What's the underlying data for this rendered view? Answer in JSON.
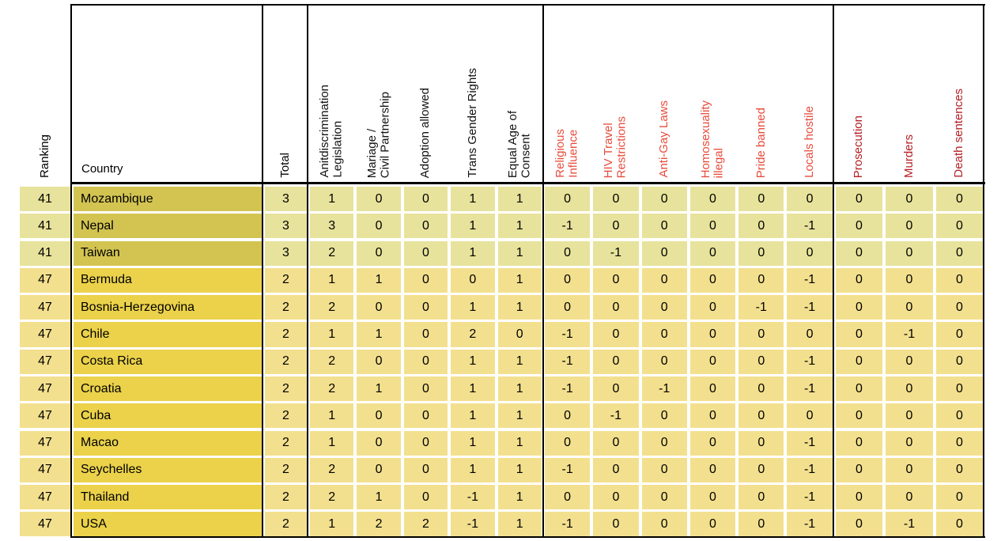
{
  "header": {
    "ranking_label": "Ranking",
    "country_label": "Country",
    "total_label": "Total",
    "score_columns": [
      "Anitdiscrimination\nLegislation",
      "Mariage /\nCivil Partnership",
      "Adoption allowed",
      "Trans Gender Rights",
      "Equal Age of\nConsent"
    ],
    "penalty_columns": [
      "Religious\nInfluence",
      "HIV Travel\nRestrictions",
      "Anti-Gay Laws",
      "Homosexuality\nillegal",
      "Pride banned",
      "Locals hostile"
    ],
    "danger_columns": [
      "Prosecution",
      "Murders",
      "Death sentences"
    ]
  },
  "colors": {
    "score_header_text": "#111111",
    "penalty_header_text": "#e74c3c",
    "danger_header_text": "#b32025",
    "rank41_row_bg": "#e8e39c",
    "rank41_country_bg": "#d3c452",
    "rank47_row_bg": "#f3e08e",
    "rank47_country_bg": "#ebd24a",
    "grid_line": "#000000"
  },
  "rows": [
    {
      "ranking": 41,
      "country": "Mozambique",
      "total": 3,
      "scores": [
        1,
        0,
        0,
        1,
        1
      ],
      "penalties": [
        0,
        0,
        0,
        0,
        0,
        0
      ],
      "danger": [
        0,
        0,
        0
      ]
    },
    {
      "ranking": 41,
      "country": "Nepal",
      "total": 3,
      "scores": [
        3,
        0,
        0,
        1,
        1
      ],
      "penalties": [
        -1,
        0,
        0,
        0,
        0,
        -1
      ],
      "danger": [
        0,
        0,
        0
      ]
    },
    {
      "ranking": 41,
      "country": "Taiwan",
      "total": 3,
      "scores": [
        2,
        0,
        0,
        1,
        1
      ],
      "penalties": [
        0,
        -1,
        0,
        0,
        0,
        0
      ],
      "danger": [
        0,
        0,
        0
      ]
    },
    {
      "ranking": 47,
      "country": "Bermuda",
      "total": 2,
      "scores": [
        1,
        1,
        0,
        0,
        1
      ],
      "penalties": [
        0,
        0,
        0,
        0,
        0,
        -1
      ],
      "danger": [
        0,
        0,
        0
      ]
    },
    {
      "ranking": 47,
      "country": "Bosnia-Herzegovina",
      "total": 2,
      "scores": [
        2,
        0,
        0,
        1,
        1
      ],
      "penalties": [
        0,
        0,
        0,
        0,
        -1,
        -1
      ],
      "danger": [
        0,
        0,
        0
      ]
    },
    {
      "ranking": 47,
      "country": "Chile",
      "total": 2,
      "scores": [
        1,
        1,
        0,
        2,
        0
      ],
      "penalties": [
        -1,
        0,
        0,
        0,
        0,
        0
      ],
      "danger": [
        0,
        -1,
        0
      ]
    },
    {
      "ranking": 47,
      "country": "Costa Rica",
      "total": 2,
      "scores": [
        2,
        0,
        0,
        1,
        1
      ],
      "penalties": [
        -1,
        0,
        0,
        0,
        0,
        -1
      ],
      "danger": [
        0,
        0,
        0
      ]
    },
    {
      "ranking": 47,
      "country": "Croatia",
      "total": 2,
      "scores": [
        2,
        1,
        0,
        1,
        1
      ],
      "penalties": [
        -1,
        0,
        -1,
        0,
        0,
        -1
      ],
      "danger": [
        0,
        0,
        0
      ]
    },
    {
      "ranking": 47,
      "country": "Cuba",
      "total": 2,
      "scores": [
        1,
        0,
        0,
        1,
        1
      ],
      "penalties": [
        0,
        -1,
        0,
        0,
        0,
        0
      ],
      "danger": [
        0,
        0,
        0
      ]
    },
    {
      "ranking": 47,
      "country": "Macao",
      "total": 2,
      "scores": [
        1,
        0,
        0,
        1,
        1
      ],
      "penalties": [
        0,
        0,
        0,
        0,
        0,
        -1
      ],
      "danger": [
        0,
        0,
        0
      ]
    },
    {
      "ranking": 47,
      "country": "Seychelles",
      "total": 2,
      "scores": [
        2,
        0,
        0,
        1,
        1
      ],
      "penalties": [
        -1,
        0,
        0,
        0,
        0,
        -1
      ],
      "danger": [
        0,
        0,
        0
      ]
    },
    {
      "ranking": 47,
      "country": "Thailand",
      "total": 2,
      "scores": [
        2,
        1,
        0,
        -1,
        1
      ],
      "penalties": [
        0,
        0,
        0,
        0,
        0,
        -1
      ],
      "danger": [
        0,
        0,
        0
      ]
    },
    {
      "ranking": 47,
      "country": "USA",
      "total": 2,
      "scores": [
        1,
        2,
        2,
        -1,
        1
      ],
      "penalties": [
        -1,
        0,
        0,
        0,
        0,
        -1
      ],
      "danger": [
        0,
        -1,
        0
      ]
    }
  ],
  "chart_data": {
    "type": "table",
    "title": "",
    "columns": [
      "Ranking",
      "Country",
      "Total",
      "Anitdiscrimination Legislation",
      "Mariage / Civil Partnership",
      "Adoption allowed",
      "Trans Gender Rights",
      "Equal Age of Consent",
      "Religious Influence",
      "HIV Travel Restrictions",
      "Anti-Gay Laws",
      "Homosexuality illegal",
      "Pride banned",
      "Locals hostile",
      "Prosecution",
      "Murders",
      "Death sentences"
    ],
    "rows": [
      [
        41,
        "Mozambique",
        3,
        1,
        0,
        0,
        1,
        1,
        0,
        0,
        0,
        0,
        0,
        0,
        0,
        0,
        0
      ],
      [
        41,
        "Nepal",
        3,
        3,
        0,
        0,
        1,
        1,
        -1,
        0,
        0,
        0,
        0,
        -1,
        0,
        0,
        0
      ],
      [
        41,
        "Taiwan",
        3,
        2,
        0,
        0,
        1,
        1,
        0,
        -1,
        0,
        0,
        0,
        0,
        0,
        0,
        0
      ],
      [
        47,
        "Bermuda",
        2,
        1,
        1,
        0,
        0,
        1,
        0,
        0,
        0,
        0,
        0,
        -1,
        0,
        0,
        0
      ],
      [
        47,
        "Bosnia-Herzegovina",
        2,
        2,
        0,
        0,
        1,
        1,
        0,
        0,
        0,
        0,
        -1,
        -1,
        0,
        0,
        0
      ],
      [
        47,
        "Chile",
        2,
        1,
        1,
        0,
        2,
        0,
        -1,
        0,
        0,
        0,
        0,
        0,
        0,
        -1,
        0
      ],
      [
        47,
        "Costa Rica",
        2,
        2,
        0,
        0,
        1,
        1,
        -1,
        0,
        0,
        0,
        0,
        -1,
        0,
        0,
        0
      ],
      [
        47,
        "Croatia",
        2,
        2,
        1,
        0,
        1,
        1,
        -1,
        0,
        -1,
        0,
        0,
        -1,
        0,
        0,
        0
      ],
      [
        47,
        "Cuba",
        2,
        1,
        0,
        0,
        1,
        1,
        0,
        -1,
        0,
        0,
        0,
        0,
        0,
        0,
        0
      ],
      [
        47,
        "Macao",
        2,
        1,
        0,
        0,
        1,
        1,
        0,
        0,
        0,
        0,
        0,
        -1,
        0,
        0,
        0
      ],
      [
        47,
        "Seychelles",
        2,
        2,
        0,
        0,
        1,
        1,
        -1,
        0,
        0,
        0,
        0,
        -1,
        0,
        0,
        0
      ],
      [
        47,
        "Thailand",
        2,
        2,
        1,
        0,
        -1,
        1,
        0,
        0,
        0,
        0,
        0,
        -1,
        0,
        0,
        0
      ],
      [
        47,
        "USA",
        2,
        1,
        2,
        2,
        -1,
        1,
        -1,
        0,
        0,
        0,
        0,
        -1,
        0,
        -1,
        0
      ]
    ]
  }
}
